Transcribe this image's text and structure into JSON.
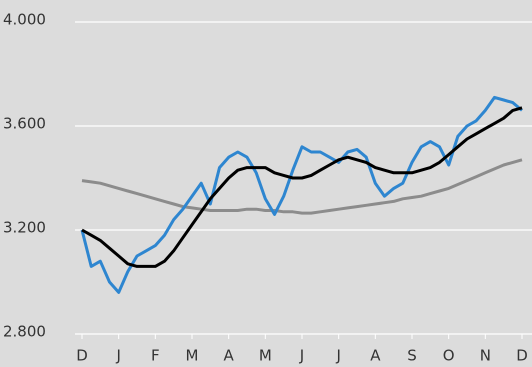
{
  "chart_data": {
    "type": "line",
    "categories": [
      "D",
      null,
      null,
      null,
      "J",
      null,
      null,
      null,
      "F",
      null,
      null,
      null,
      "M",
      null,
      null,
      null,
      "A",
      null,
      null,
      null,
      "M",
      null,
      null,
      null,
      "J",
      null,
      null,
      null,
      "J",
      null,
      null,
      null,
      "A",
      null,
      null,
      null,
      "S",
      null,
      null,
      null,
      "O",
      null,
      null,
      null,
      "N",
      null,
      null,
      null,
      "D"
    ],
    "series": [
      {
        "color": "#8c8c8c",
        "values": [
          3390,
          3385,
          3380,
          3370,
          3360,
          3350,
          3340,
          3330,
          3320,
          3310,
          3300,
          3290,
          3285,
          3280,
          3275,
          3275,
          3275,
          3275,
          3280,
          3280,
          3275,
          3275,
          3270,
          3270,
          3265,
          3265,
          3270,
          3275,
          3280,
          3285,
          3290,
          3295,
          3300,
          3305,
          3310,
          3320,
          3325,
          3330,
          3340,
          3350,
          3360,
          3375,
          3390,
          3405,
          3420,
          3435,
          3450,
          3460,
          3470
        ]
      },
      {
        "color": "#2e86d0",
        "values": [
          3200,
          3060,
          3080,
          3000,
          2960,
          3040,
          3100,
          3120,
          3140,
          3180,
          3240,
          3280,
          3330,
          3380,
          3300,
          3440,
          3480,
          3500,
          3480,
          3420,
          3320,
          3260,
          3330,
          3430,
          3520,
          3500,
          3500,
          3480,
          3460,
          3500,
          3510,
          3480,
          3380,
          3330,
          3360,
          3380,
          3460,
          3520,
          3540,
          3520,
          3450,
          3560,
          3600,
          3620,
          3660,
          3710,
          3700,
          3690,
          3660
        ]
      },
      {
        "color": "#000000",
        "values": [
          3200,
          3180,
          3160,
          3130,
          3100,
          3070,
          3060,
          3060,
          3060,
          3080,
          3120,
          3170,
          3220,
          3270,
          3320,
          3360,
          3400,
          3430,
          3440,
          3440,
          3440,
          3420,
          3410,
          3400,
          3400,
          3410,
          3430,
          3450,
          3470,
          3480,
          3470,
          3460,
          3440,
          3430,
          3420,
          3420,
          3420,
          3430,
          3440,
          3460,
          3490,
          3520,
          3550,
          3570,
          3590,
          3610,
          3630,
          3660,
          3670
        ]
      }
    ],
    "ylim": [
      2800,
      4000
    ],
    "yticks": [
      {
        "value": 2800,
        "label": "2.800"
      },
      {
        "value": 3200,
        "label": "3.200"
      },
      {
        "value": 3600,
        "label": "3.600"
      },
      {
        "value": 4000,
        "label": "4.000"
      }
    ],
    "grid": true
  }
}
